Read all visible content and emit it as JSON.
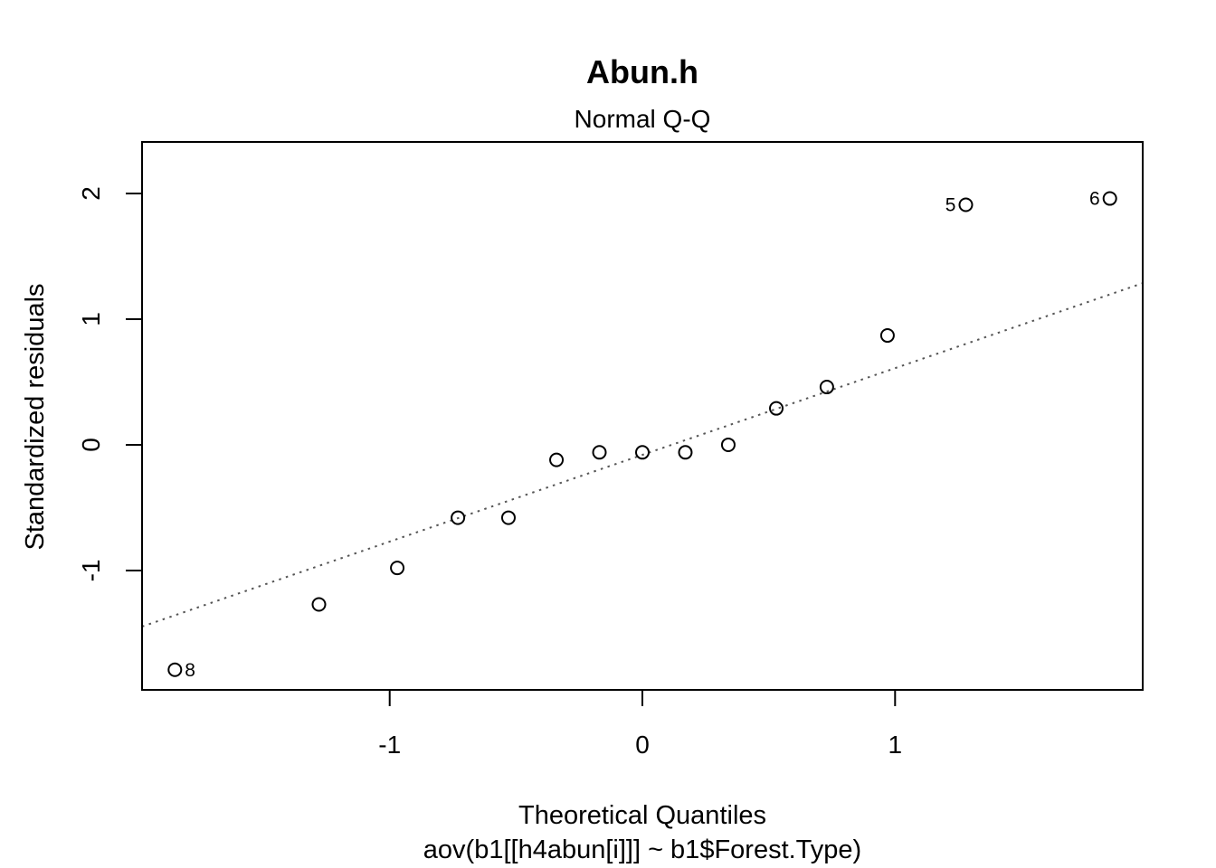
{
  "chart_data": {
    "type": "scatter",
    "title": "Abun.h",
    "subtitle": "Normal Q-Q",
    "xlabel": "Theoretical Quantiles",
    "xlabel2": "aov(b1[[h4abun[i]]] ~ b1$Forest.Type)",
    "ylabel": "Standardized residuals",
    "xlim": [
      -1.98,
      1.98
    ],
    "ylim": [
      -1.95,
      2.41
    ],
    "xticks": [
      -1,
      0,
      1
    ],
    "xtick_labels": [
      "-1",
      "0",
      "1"
    ],
    "yticks": [
      -1,
      0,
      1,
      2
    ],
    "ytick_labels": [
      "-1",
      "0",
      "1",
      "2"
    ],
    "grid": false,
    "reference_line": {
      "style": "dotted",
      "color": "#555555",
      "intercept": -0.08,
      "slope": 0.69
    },
    "points": [
      {
        "x": -1.85,
        "y": -1.79,
        "label": "8"
      },
      {
        "x": -1.28,
        "y": -1.27,
        "label": ""
      },
      {
        "x": -0.97,
        "y": -0.98,
        "label": ""
      },
      {
        "x": -0.73,
        "y": -0.58,
        "label": ""
      },
      {
        "x": -0.53,
        "y": -0.58,
        "label": ""
      },
      {
        "x": -0.34,
        "y": -0.12,
        "label": ""
      },
      {
        "x": -0.17,
        "y": -0.06,
        "label": ""
      },
      {
        "x": 0.0,
        "y": -0.06,
        "label": ""
      },
      {
        "x": 0.17,
        "y": -0.06,
        "label": ""
      },
      {
        "x": 0.34,
        "y": 0.0,
        "label": ""
      },
      {
        "x": 0.53,
        "y": 0.29,
        "label": ""
      },
      {
        "x": 0.73,
        "y": 0.46,
        "label": ""
      },
      {
        "x": 0.97,
        "y": 0.87,
        "label": ""
      },
      {
        "x": 1.28,
        "y": 1.91,
        "label": "5"
      },
      {
        "x": 1.85,
        "y": 1.96,
        "label": "6"
      }
    ]
  }
}
